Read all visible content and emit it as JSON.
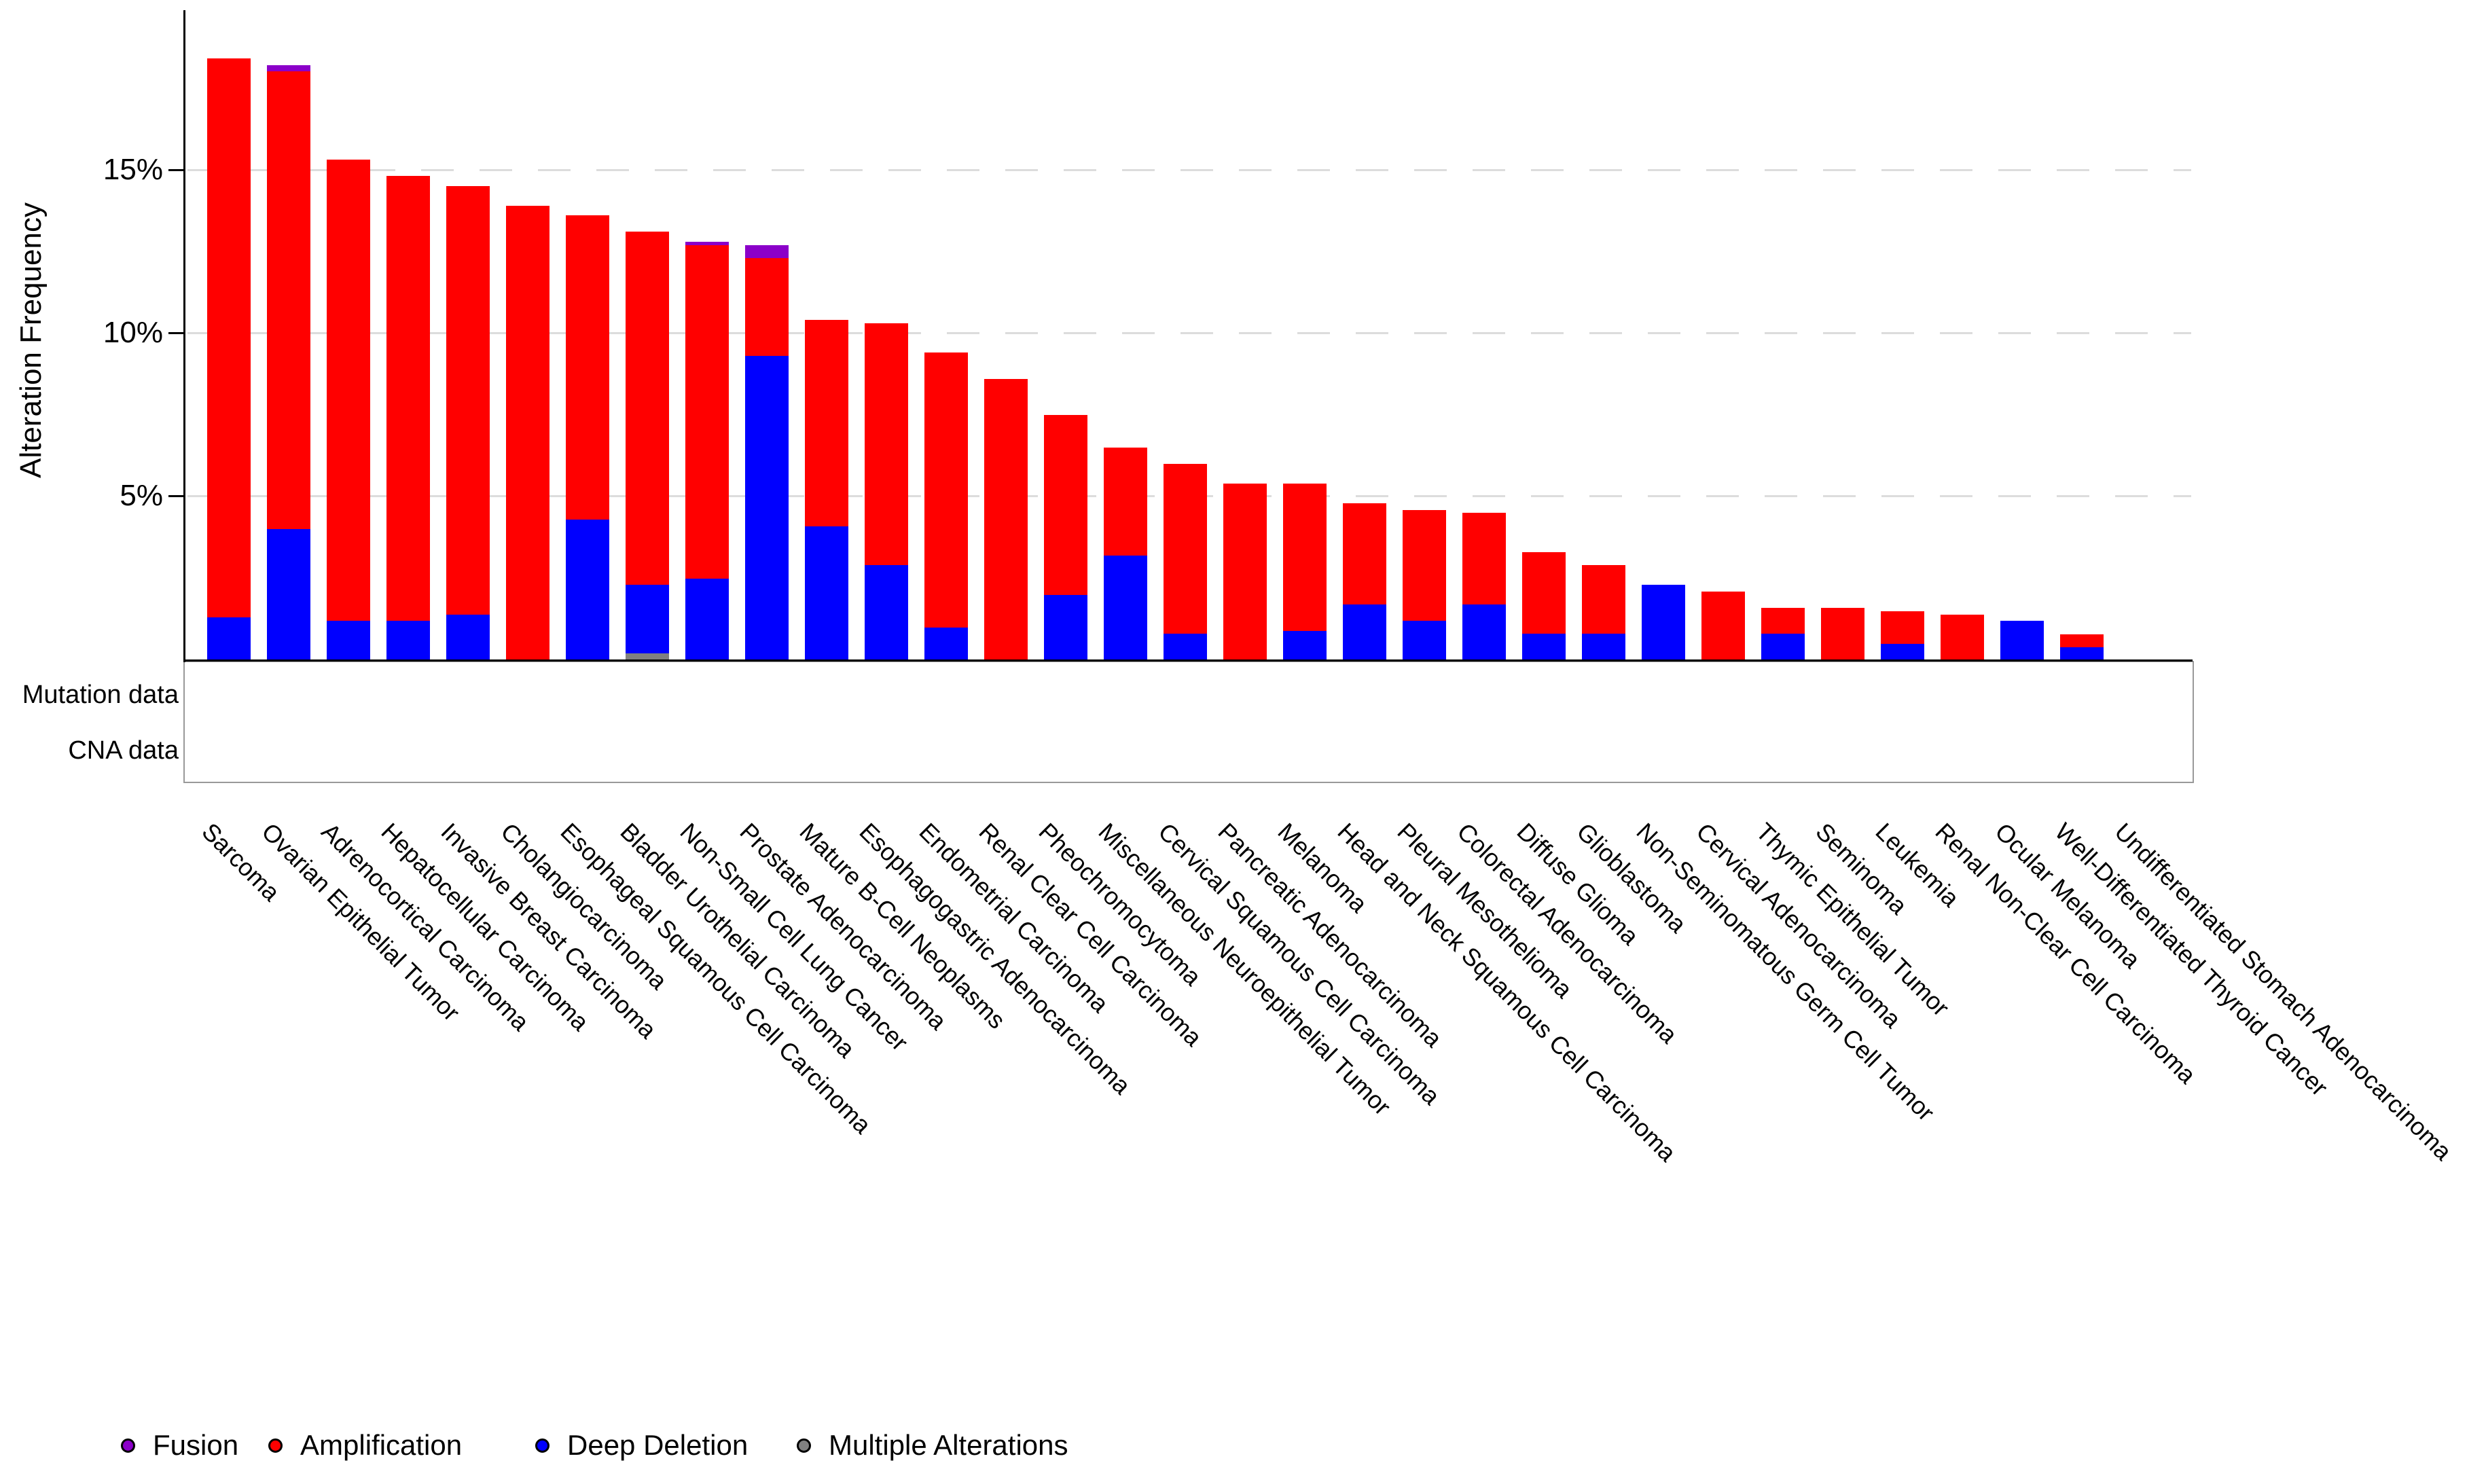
{
  "y_axis": {
    "title": "Alteration Frequency",
    "tick_labels": [
      "15%",
      "10%",
      "5%"
    ]
  },
  "tracks": {
    "mutation_label": "Mutation data",
    "cna_label": "CNA data",
    "plus_symbol": "+"
  },
  "legend": {
    "items": [
      {
        "label": "Fusion",
        "color": "#8B00C9"
      },
      {
        "label": "Amplification",
        "color": "#FF0000"
      },
      {
        "label": "Deep Deletion",
        "color": "#0000FF"
      },
      {
        "label": "Multiple Alterations",
        "color": "#808080"
      }
    ]
  },
  "chart_data": {
    "type": "bar",
    "stacked": true,
    "title": "",
    "xlabel": "",
    "ylabel": "Alteration Frequency",
    "ylim": [
      0,
      18.6
    ],
    "yticks_percent": [
      5,
      10,
      15
    ],
    "grid": "horizontal-dashed",
    "legend_position": "bottom-left",
    "categories": [
      "Sarcoma",
      "Ovarian Epithelial Tumor",
      "Adrenocortical Carcinoma",
      "Hepatocellular Carcinoma",
      "Invasive Breast Carcinoma",
      "Cholangiocarcinoma",
      "Esophageal Squamous Cell Carcinoma",
      "Bladder Urothelial Carcinoma",
      "Non-Small Cell Lung Cancer",
      "Prostate Adenocarcinoma",
      "Mature B-Cell Neoplasms",
      "Esophagogastric Adenocarcinoma",
      "Endometrial Carcinoma",
      "Renal Clear Cell Carcinoma",
      "Pheochromocytoma",
      "Miscellaneous Neuroepithelial Tumor",
      "Cervical Squamous Cell Carcinoma",
      "Pancreatic Adenocarcinoma",
      "Melanoma",
      "Head and Neck Squamous Cell Carcinoma",
      "Pleural Mesothelioma",
      "Colorectal Adenocarcinoma",
      "Diffuse Glioma",
      "Glioblastoma",
      "Non-Seminomatous Germ Cell Tumor",
      "Cervical Adenocarcinoma",
      "Thymic Epithelial Tumor",
      "Seminoma",
      "Leukemia",
      "Renal Non-Clear Cell Carcinoma",
      "Ocular Melanoma",
      "Well-Differentiated Thyroid Cancer",
      "Undifferentiated Stomach Adenocarcinoma"
    ],
    "series": [
      {
        "name": "Multiple Alterations",
        "color": "#808080",
        "values": [
          0,
          0,
          0,
          0,
          0,
          0,
          0,
          0.2,
          0,
          0,
          0,
          0,
          0,
          0,
          0,
          0,
          0,
          0,
          0,
          0,
          0,
          0,
          0,
          0,
          0,
          0,
          0,
          0,
          0,
          0,
          0,
          0,
          0
        ]
      },
      {
        "name": "Deep Deletion",
        "color": "#0000FF",
        "values": [
          1.3,
          4.0,
          1.2,
          1.2,
          1.4,
          0,
          4.3,
          2.1,
          2.5,
          9.3,
          4.1,
          2.9,
          1.0,
          0,
          2.0,
          3.2,
          0.8,
          0,
          0.9,
          1.7,
          1.2,
          1.7,
          0.8,
          0.8,
          2.3,
          0,
          0.8,
          0,
          0.5,
          0,
          1.2,
          0.4,
          0
        ]
      },
      {
        "name": "Amplification",
        "color": "#FF0000",
        "values": [
          17.1,
          14.0,
          14.1,
          13.6,
          13.1,
          13.9,
          9.3,
          10.8,
          10.2,
          3.0,
          6.3,
          7.4,
          8.4,
          8.6,
          5.5,
          3.3,
          5.2,
          5.4,
          4.5,
          3.1,
          3.4,
          2.8,
          2.5,
          2.1,
          0,
          2.1,
          0.8,
          1.6,
          1.0,
          1.4,
          0,
          0.4,
          0
        ]
      },
      {
        "name": "Fusion",
        "color": "#8B00C9",
        "values": [
          0,
          0.2,
          0,
          0,
          0,
          0,
          0,
          0,
          0.1,
          0.4,
          0,
          0,
          0,
          0,
          0,
          0,
          0,
          0,
          0,
          0,
          0,
          0,
          0,
          0,
          0,
          0,
          0,
          0,
          0,
          0,
          0,
          0,
          0
        ]
      }
    ],
    "totals": [
      18.4,
      18.2,
      15.3,
      14.8,
      14.5,
      13.9,
      13.6,
      13.1,
      12.8,
      12.7,
      10.4,
      10.3,
      9.4,
      8.6,
      7.5,
      6.5,
      6.0,
      5.4,
      5.4,
      4.8,
      4.6,
      4.5,
      3.3,
      2.9,
      2.3,
      2.1,
      1.6,
      1.6,
      1.5,
      1.4,
      1.2,
      0.8,
      0
    ],
    "mutation_data": [
      true,
      true,
      true,
      true,
      true,
      true,
      true,
      true,
      true,
      true,
      true,
      true,
      true,
      true,
      true,
      true,
      true,
      true,
      true,
      true,
      true,
      true,
      true,
      true,
      true,
      true,
      true,
      true,
      true,
      true,
      true,
      true,
      true
    ],
    "cna_data": [
      true,
      true,
      true,
      true,
      true,
      true,
      true,
      true,
      true,
      true,
      true,
      true,
      true,
      true,
      true,
      true,
      true,
      true,
      true,
      true,
      true,
      true,
      true,
      true,
      true,
      true,
      true,
      true,
      true,
      true,
      true,
      true,
      true
    ]
  }
}
